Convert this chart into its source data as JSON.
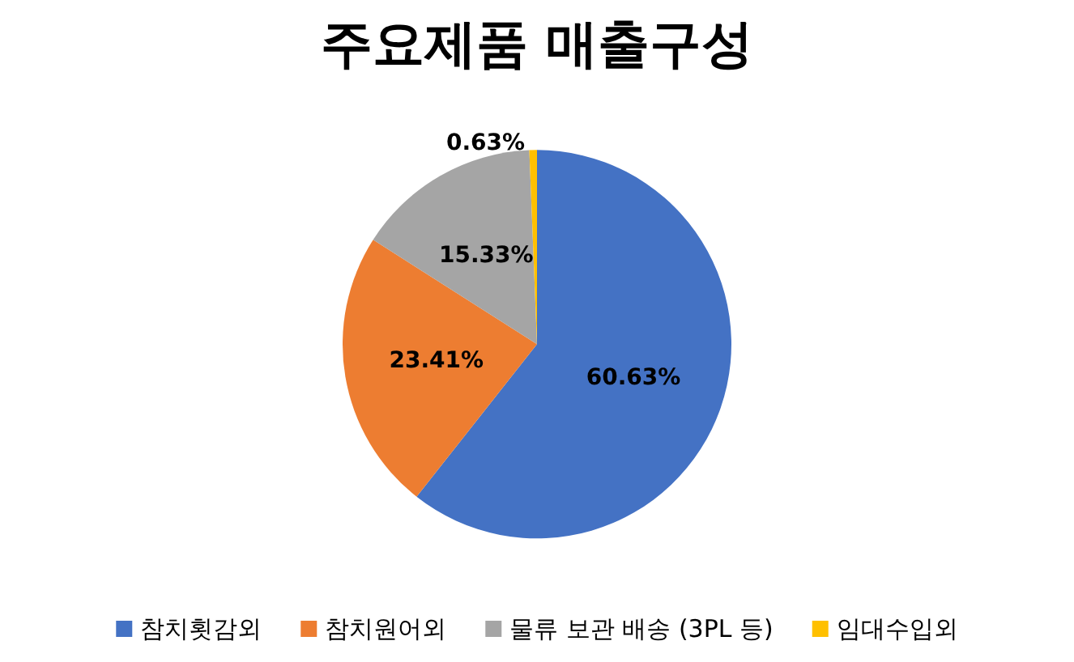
{
  "chart_data": {
    "type": "pie",
    "title": "주요제품 매출구성",
    "categories": [
      "참치횟감외",
      "참치원어외",
      "물류 보관 배송 (3PL 등)",
      "임대수입외"
    ],
    "values": [
      60.63,
      23.41,
      15.33,
      0.63
    ],
    "colors": [
      "#4472c4",
      "#ed7d31",
      "#a5a5a5",
      "#ffc000"
    ],
    "value_labels": [
      "60.63%",
      "23.41%",
      "15.33%",
      "0.63%"
    ],
    "legend": "bottom"
  }
}
